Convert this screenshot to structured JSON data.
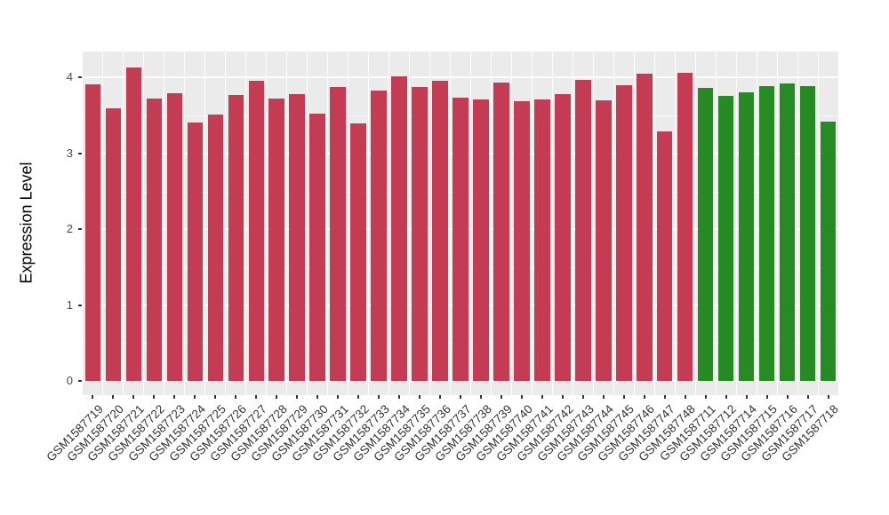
{
  "chart_data": {
    "type": "bar",
    "title": "",
    "xlabel": "",
    "ylabel": "Expression Level",
    "ylim": [
      0,
      4.34
    ],
    "yticks": [
      "0",
      "1",
      "2",
      "3",
      "4"
    ],
    "grid": true,
    "legend": "none",
    "panel_background": "#EBEBEB",
    "gridline_color": "#FFFFFF",
    "categories": [
      "GSM1587719",
      "GSM1587720",
      "GSM1587721",
      "GSM1587722",
      "GSM1587723",
      "GSM1587724",
      "GSM1587725",
      "GSM1587726",
      "GSM1587727",
      "GSM1587728",
      "GSM1587729",
      "GSM1587730",
      "GSM1587731",
      "GSM1587732",
      "GSM1587733",
      "GSM1587734",
      "GSM1587735",
      "GSM1587736",
      "GSM1587737",
      "GSM1587738",
      "GSM1587739",
      "GSM1587740",
      "GSM1587741",
      "GSM1587742",
      "GSM1587743",
      "GSM1587744",
      "GSM1587745",
      "GSM1587746",
      "GSM1587747",
      "GSM1587748",
      "GSM1587711",
      "GSM1587712",
      "GSM1587714",
      "GSM1587715",
      "GSM1587716",
      "GSM1587717",
      "GSM1587718"
    ],
    "values": [
      3.91,
      3.59,
      4.13,
      3.72,
      3.79,
      3.41,
      3.51,
      3.77,
      3.96,
      3.72,
      3.78,
      3.53,
      3.88,
      3.39,
      3.83,
      4.02,
      3.88,
      3.96,
      3.74,
      3.71,
      3.94,
      3.69,
      3.71,
      3.78,
      3.97,
      3.7,
      3.9,
      4.05,
      3.29,
      4.06,
      3.87,
      3.76,
      3.81,
      3.89,
      3.92,
      3.89,
      3.42
    ],
    "color_groups": [
      {
        "color": "#C33C54",
        "count": 30
      },
      {
        "color": "#278B24",
        "count": 7
      }
    ]
  }
}
